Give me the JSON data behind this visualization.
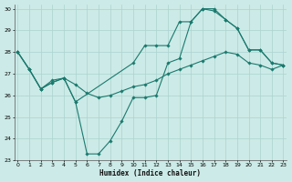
{
  "title": "",
  "xlabel": "Humidex (Indice chaleur)",
  "ylabel": "",
  "background_color": "#cceae7",
  "grid_color": "#aad4d0",
  "line_color": "#1a7a6e",
  "ylim": [
    23,
    30.2
  ],
  "xlim": [
    -0.3,
    23.3
  ],
  "yticks": [
    23,
    24,
    25,
    26,
    27,
    28,
    29,
    30
  ],
  "xticks": [
    0,
    1,
    2,
    3,
    4,
    5,
    6,
    7,
    8,
    9,
    10,
    11,
    12,
    13,
    14,
    15,
    16,
    17,
    18,
    19,
    20,
    21,
    22,
    23
  ],
  "line1_x": [
    0,
    1,
    2,
    3,
    4,
    5,
    6,
    7,
    8,
    9,
    10,
    11,
    12,
    13,
    14,
    15,
    16,
    17,
    18,
    19,
    20,
    21,
    22,
    23
  ],
  "line1_y": [
    28.0,
    27.2,
    26.3,
    26.6,
    26.8,
    25.7,
    23.3,
    23.3,
    23.9,
    24.8,
    25.9,
    25.9,
    26.0,
    27.5,
    27.7,
    29.4,
    30.0,
    29.9,
    29.5,
    29.1,
    28.1,
    28.1,
    27.5,
    27.4
  ],
  "line2_x": [
    0,
    1,
    2,
    3,
    4,
    5,
    10,
    11,
    12,
    13,
    14,
    15,
    16,
    17,
    18,
    19,
    20,
    21,
    22,
    23
  ],
  "line2_y": [
    28.0,
    27.2,
    26.3,
    26.6,
    26.8,
    25.7,
    27.5,
    28.3,
    28.3,
    28.3,
    29.4,
    29.4,
    30.0,
    30.0,
    29.5,
    29.1,
    28.1,
    28.1,
    27.5,
    27.4
  ],
  "line3_x": [
    0,
    1,
    2,
    3,
    4,
    5,
    6,
    7,
    8,
    9,
    10,
    11,
    12,
    13,
    14,
    15,
    16,
    17,
    18,
    19,
    20,
    21,
    22,
    23
  ],
  "line3_y": [
    28.0,
    27.2,
    26.3,
    26.7,
    26.8,
    26.5,
    26.1,
    25.9,
    26.0,
    26.2,
    26.4,
    26.5,
    26.7,
    27.0,
    27.2,
    27.4,
    27.6,
    27.8,
    28.0,
    27.9,
    27.5,
    27.4,
    27.2,
    27.4
  ]
}
